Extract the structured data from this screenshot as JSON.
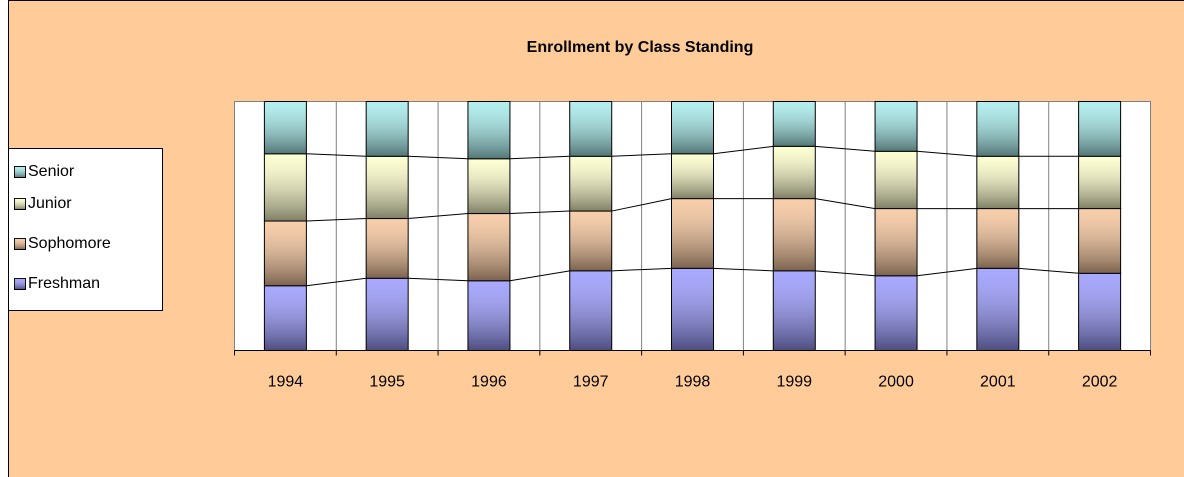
{
  "chart_data": {
    "type": "stacked-percent-bar",
    "title": "Enrollment by Class Standing",
    "categories": [
      "1994",
      "1995",
      "1996",
      "1997",
      "1998",
      "1999",
      "2000",
      "2001",
      "2002"
    ],
    "ylim": [
      0,
      100
    ],
    "legend": "left",
    "series": [
      {
        "name": "Freshman",
        "color": "#9999ff",
        "values": [
          26,
          29,
          28,
          32,
          33,
          32,
          30,
          33,
          31
        ]
      },
      {
        "name": "Sophomore",
        "color": "#f7c69c",
        "values": [
          26,
          24,
          27,
          24,
          28,
          29,
          27,
          24,
          26
        ]
      },
      {
        "name": "Junior",
        "color": "#ffffcc",
        "values": [
          27,
          25,
          22,
          22,
          18,
          21,
          23,
          21,
          21
        ]
      },
      {
        "name": "Senior",
        "color": "#a6ecec",
        "values": [
          21,
          22,
          23,
          22,
          21,
          18,
          20,
          22,
          22
        ]
      }
    ]
  }
}
